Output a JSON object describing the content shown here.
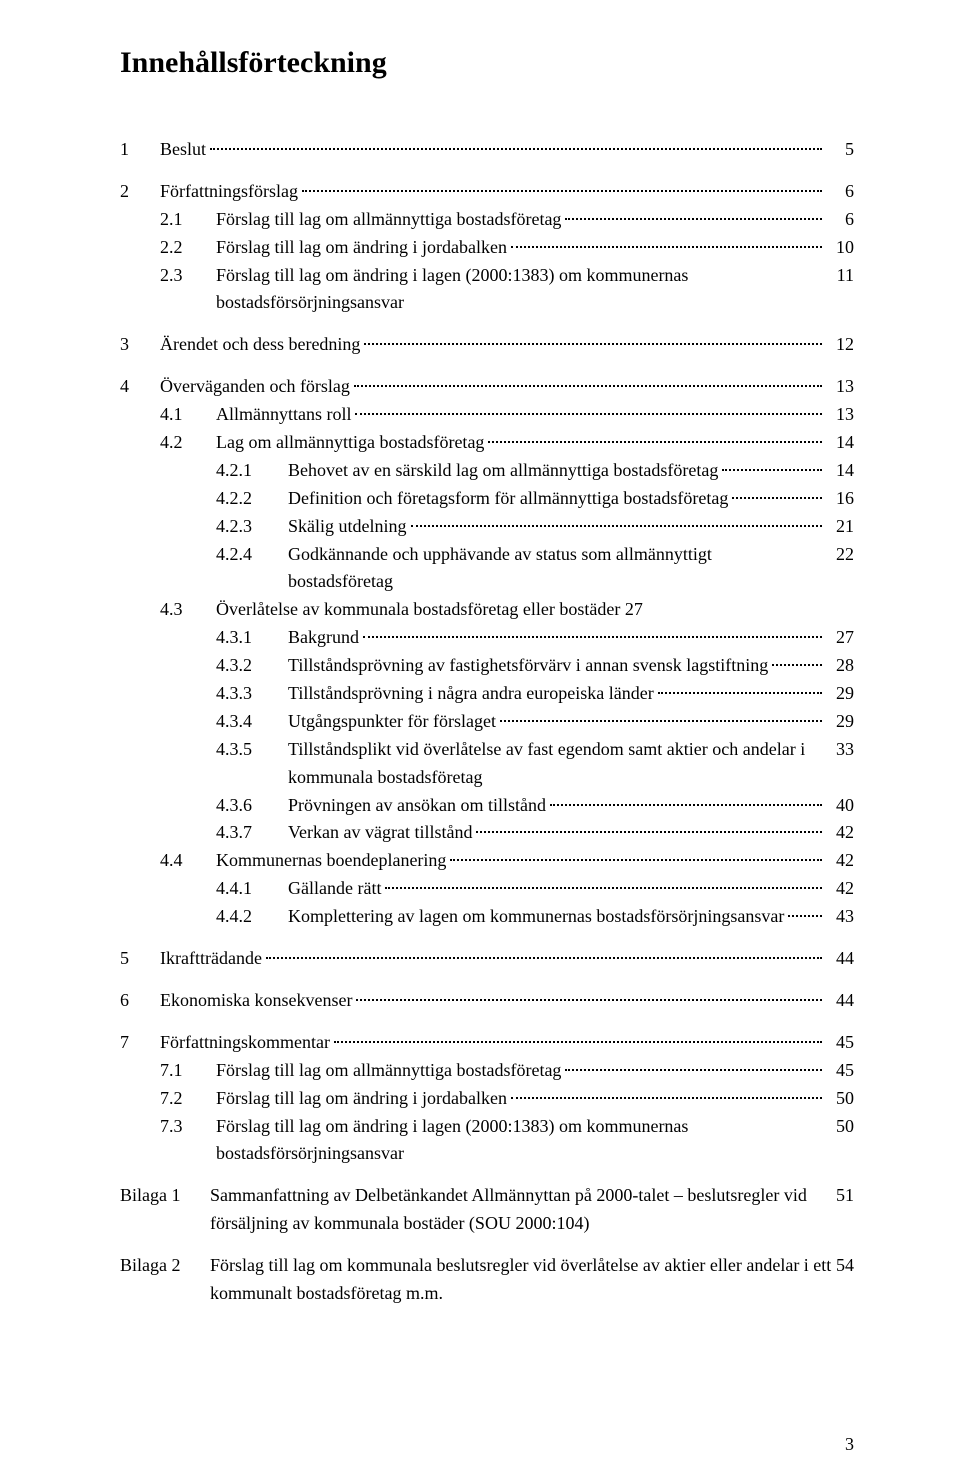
{
  "title": "Innehållsförteckning",
  "page_number": "3",
  "toc": [
    {
      "num": "1",
      "label": "Beslut",
      "page": "5",
      "numCol": "num-col-1",
      "indent": "",
      "type": "l1"
    },
    {
      "gap": true
    },
    {
      "num": "2",
      "label": "Författningsförslag",
      "page": "6",
      "numCol": "num-col-1",
      "indent": "",
      "type": "l1"
    },
    {
      "num": "2.1",
      "label": "Förslag till lag om allmännyttiga bostadsföretag",
      "page": "6",
      "numCol": "num-col-2",
      "indent": "indent-1",
      "type": "l2"
    },
    {
      "num": "2.2",
      "label": "Förslag till lag om ändring i jordabalken",
      "page": "10",
      "numCol": "num-col-2",
      "indent": "indent-1",
      "type": "l2"
    },
    {
      "num": "2.3",
      "label": "Förslag till lag om ändring i lagen (2000:1383) om kommunernas bostadsförsörjningsansvar",
      "page": "11",
      "numCol": "num-col-2",
      "indent": "indent-1",
      "type": "l2"
    },
    {
      "gap": true
    },
    {
      "num": "3",
      "label": "Ärendet och dess beredning",
      "page": "12",
      "numCol": "num-col-1",
      "indent": "",
      "type": "l1"
    },
    {
      "gap": true
    },
    {
      "num": "4",
      "label": "Överväganden och förslag",
      "page": "13",
      "numCol": "num-col-1",
      "indent": "",
      "type": "l1"
    },
    {
      "num": "4.1",
      "label": "Allmännyttans roll",
      "page": "13",
      "numCol": "num-col-2",
      "indent": "indent-1",
      "type": "l2"
    },
    {
      "num": "4.2",
      "label": "Lag om allmännyttiga bostadsföretag",
      "page": "14",
      "numCol": "num-col-2",
      "indent": "indent-1",
      "type": "l2"
    },
    {
      "num": "4.2.1",
      "label": "Behovet av en särskild lag om allmännyttiga bostadsföretag",
      "page": "14",
      "numCol": "num-col-3",
      "indent": "indent-2",
      "type": "l3"
    },
    {
      "num": "4.2.2",
      "label": "Definition och företagsform för allmännyttiga bostadsföretag",
      "page": "16",
      "numCol": "num-col-3",
      "indent": "indent-2",
      "type": "l3"
    },
    {
      "num": "4.2.3",
      "label": "Skälig utdelning",
      "page": "21",
      "numCol": "num-col-3",
      "indent": "indent-2",
      "type": "l3"
    },
    {
      "num": "4.2.4",
      "label": "Godkännande och upphävande av status som allmännyttigt bostadsföretag",
      "page": "22",
      "numCol": "num-col-3",
      "indent": "indent-2",
      "type": "l3"
    },
    {
      "num": "4.3",
      "label": "Överlåtelse av kommunala bostadsföretag eller bostäder",
      "page": "27",
      "numCol": "num-col-2",
      "indent": "indent-1",
      "type": "l2",
      "nodots": true
    },
    {
      "num": "4.3.1",
      "label": "Bakgrund",
      "page": "27",
      "numCol": "num-col-3",
      "indent": "indent-2",
      "type": "l3"
    },
    {
      "num": "4.3.2",
      "label": "Tillståndsprövning av fastighetsförvärv i annan svensk lagstiftning",
      "page": "28",
      "numCol": "num-col-3",
      "indent": "indent-2",
      "type": "l3"
    },
    {
      "num": "4.3.3",
      "label": "Tillståndsprövning i några andra europeiska länder",
      "page": "29",
      "numCol": "num-col-3",
      "indent": "indent-2",
      "type": "l3"
    },
    {
      "num": "4.3.4",
      "label": "Utgångspunkter för förslaget",
      "page": "29",
      "numCol": "num-col-3",
      "indent": "indent-2",
      "type": "l3"
    },
    {
      "num": "4.3.5",
      "label": "Tillståndsplikt vid överlåtelse av fast egendom samt aktier och andelar i kommunala bostadsföretag",
      "page": "33",
      "numCol": "num-col-3",
      "indent": "indent-2",
      "type": "l3"
    },
    {
      "num": "4.3.6",
      "label": "Prövningen av ansökan om tillstånd",
      "page": "40",
      "numCol": "num-col-3",
      "indent": "indent-2",
      "type": "l3"
    },
    {
      "num": "4.3.7",
      "label": "Verkan av vägrat tillstånd",
      "page": "42",
      "numCol": "num-col-3",
      "indent": "indent-2",
      "type": "l3"
    },
    {
      "num": "4.4",
      "label": "Kommunernas boendeplanering",
      "page": "42",
      "numCol": "num-col-2",
      "indent": "indent-1",
      "type": "l2"
    },
    {
      "num": "4.4.1",
      "label": "Gällande rätt",
      "page": "42",
      "numCol": "num-col-3",
      "indent": "indent-2",
      "type": "l3"
    },
    {
      "num": "4.4.2",
      "label": "Komplettering av lagen om kommunernas bostadsförsörjningsansvar",
      "page": "43",
      "numCol": "num-col-3",
      "indent": "indent-2",
      "type": "l3"
    },
    {
      "gap": true
    },
    {
      "num": "5",
      "label": "Ikraftträdande",
      "page": "44",
      "numCol": "num-col-1",
      "indent": "",
      "type": "l1"
    },
    {
      "gap": true
    },
    {
      "num": "6",
      "label": "Ekonomiska konsekvenser",
      "page": "44",
      "numCol": "num-col-1",
      "indent": "",
      "type": "l1"
    },
    {
      "gap": true
    },
    {
      "num": "7",
      "label": "Författningskommentar",
      "page": "45",
      "numCol": "num-col-1",
      "indent": "",
      "type": "l1"
    },
    {
      "num": "7.1",
      "label": "Förslag till lag om allmännyttiga bostadsföretag",
      "page": "45",
      "numCol": "num-col-2",
      "indent": "indent-1",
      "type": "l2"
    },
    {
      "num": "7.2",
      "label": "Förslag till lag om ändring i jordabalken",
      "page": "50",
      "numCol": "num-col-2",
      "indent": "indent-1",
      "type": "l2"
    },
    {
      "num": "7.3",
      "label": "Förslag till lag om ändring i lagen (2000:1383) om kommunernas bostadsförsörjningsansvar",
      "page": "50",
      "numCol": "num-col-2",
      "indent": "indent-1",
      "type": "l2"
    },
    {
      "gap": true
    },
    {
      "num": "Bilaga 1",
      "label": "Sammanfattning av Delbetänkandet Allmännyttan på 2000-talet – beslutsregler vid försäljning av kommunala bostäder (SOU 2000:104)",
      "page": "51",
      "numCol": "num-col-bil",
      "indent": "",
      "type": "bil"
    },
    {
      "gap": true
    },
    {
      "num": "Bilaga 2",
      "label": "Förslag till lag om kommunala beslutsregler vid överlåtelse av aktier eller andelar i ett kommunalt bostadsföretag m.m.",
      "page": "54",
      "numCol": "num-col-bil",
      "indent": "",
      "type": "bil",
      "nodots": true
    }
  ]
}
